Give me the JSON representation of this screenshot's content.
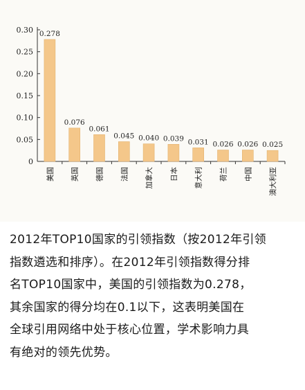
{
  "chart_data": {
    "type": "bar",
    "categories": [
      "美国",
      "英国",
      "德国",
      "法国",
      "加拿大",
      "日本",
      "意大利",
      "荷兰",
      "中国",
      "澳大利亚"
    ],
    "values": [
      0.278,
      0.076,
      0.061,
      0.045,
      0.04,
      0.039,
      0.031,
      0.026,
      0.026,
      0.025
    ],
    "value_labels": [
      "0.278",
      "0.076",
      "0.061",
      "0.045",
      "0.040",
      "0.039",
      "0.031",
      "0.026",
      "0.026",
      "0.025"
    ],
    "yticks": [
      "0",
      "0.05",
      "0.10",
      "0.15",
      "0.20",
      "0.25",
      "0.30"
    ],
    "ylim": [
      0,
      0.3
    ],
    "grid": false,
    "bar_color": "#f4c78a",
    "title": "",
    "xlabel": "",
    "ylabel": ""
  },
  "caption_lines": [
    "2012年TOP10国家的引领指数（按2012年引领",
    "指数遴选和排序）。在2012年引领指数得分排",
    "名TOP10国家中，美国的引领指数为0.278，",
    "其余国家的得分均在0.1以下，这表明美国在",
    "全球引用网络中处于核心位置，学术影响力具",
    "有绝对的领先优势。"
  ]
}
